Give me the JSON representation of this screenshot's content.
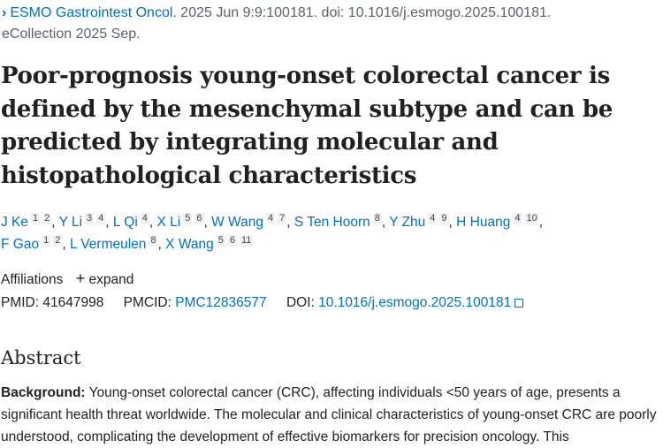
{
  "citation": {
    "journal": "ESMO Gastrointest Oncol.",
    "details": " 2025 Jun 9:9:100181. doi: 10.1016/j.esmogo.2025.100181.",
    "ecollection": "eCollection 2025 Sep."
  },
  "title": "Poor-prognosis young-onset colorectal cancer is defined by the mesenchymal subtype and can be predicted by integrating molecular and histopathological characteristics",
  "authors": [
    {
      "name": "J Ke",
      "aff": [
        "1",
        "2"
      ]
    },
    {
      "name": "Y Li",
      "aff": [
        "3",
        "4"
      ]
    },
    {
      "name": "L Qi",
      "aff": [
        "4"
      ]
    },
    {
      "name": "X Li",
      "aff": [
        "5",
        "6"
      ]
    },
    {
      "name": "W Wang",
      "aff": [
        "4",
        "7"
      ]
    },
    {
      "name": "S Ten Hoorn",
      "aff": [
        "8"
      ]
    },
    {
      "name": "Y Zhu",
      "aff": [
        "4",
        "9"
      ]
    },
    {
      "name": "H Huang",
      "aff": [
        "4",
        "10"
      ]
    },
    {
      "name": "F Gao",
      "aff": [
        "1",
        "2"
      ]
    },
    {
      "name": "L Vermeulen",
      "aff": [
        "8"
      ]
    },
    {
      "name": "X Wang",
      "aff": [
        "5",
        "6",
        "11"
      ]
    }
  ],
  "affiliations": {
    "label": "Affiliations",
    "expand": "expand"
  },
  "ids": {
    "pmid_label": "PMID:",
    "pmid": "41647998",
    "pmcid_label": "PMCID:",
    "pmcid": "PMC12836577",
    "doi_label": "DOI:",
    "doi": "10.1016/j.esmogo.2025.100181"
  },
  "abstract": {
    "heading": "Abstract",
    "background_label": "Background:",
    "background_text": " Young-onset colorectal cancer (CRC), affecting individuals <50 years of age, presents a significant health threat worldwide. The molecular and clinical characteristics of young-onset CRC are poorly understood, complicating the development of effective biomarkers for precision oncology. This"
  },
  "colors": {
    "link": "#0071bc",
    "text": "#212121",
    "muted": "#5b616b"
  }
}
